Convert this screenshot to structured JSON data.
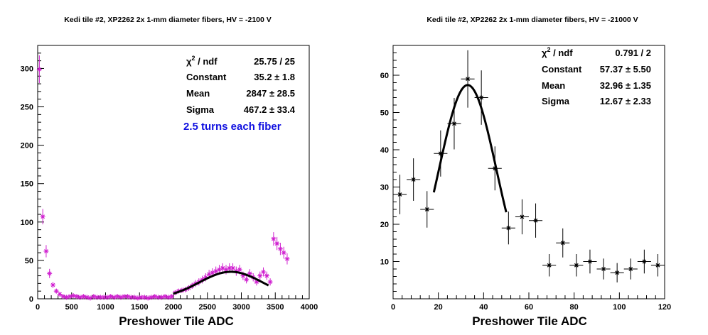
{
  "colors": {
    "magenta": "#d020d0",
    "black": "#000000",
    "annotation_blue": "#1010e0"
  },
  "chart_data": [
    {
      "type": "scatter",
      "title": "Kedi tile #2, XP2262 2x 1-mm diameter fibers, HV = -2100 V",
      "xlabel": "Preshower Tile ADC",
      "ylabel": "",
      "xlim": [
        0,
        4000
      ],
      "ylim": [
        0,
        330
      ],
      "x_ticks": [
        "0",
        "500",
        "1000",
        "1500",
        "2000",
        "2500",
        "3000",
        "3500",
        "4000"
      ],
      "y_ticks": [
        "0",
        "50",
        "100",
        "150",
        "200",
        "250",
        "300"
      ],
      "marker": "star",
      "marker_color": "magenta",
      "series": [
        {
          "x": [
            25,
            75,
            125,
            175,
            225,
            275,
            325,
            375,
            425,
            475,
            525,
            575,
            625,
            675,
            725,
            775,
            825,
            875,
            925,
            975,
            1025,
            1075,
            1125,
            1175,
            1225,
            1275,
            1325,
            1375,
            1425,
            1475,
            1525,
            1575,
            1625,
            1675,
            1725,
            1775,
            1825,
            1875,
            1925,
            1975,
            2025,
            2075,
            2125,
            2175,
            2225,
            2275,
            2325,
            2375,
            2425,
            2475,
            2525,
            2575,
            2625,
            2675,
            2725,
            2775,
            2825,
            2875,
            2925,
            2975,
            3025,
            3075,
            3125,
            3175,
            3225,
            3275,
            3325,
            3375,
            3425,
            3475,
            3525,
            3575,
            3625,
            3675
          ],
          "y": [
            299,
            107,
            62,
            33,
            18,
            10,
            6,
            3,
            2,
            3,
            4,
            3,
            2,
            3,
            2,
            1,
            3,
            2,
            2,
            2,
            2,
            3,
            2,
            3,
            2,
            3,
            3,
            2,
            2,
            1,
            2,
            2,
            1,
            2,
            3,
            2,
            2,
            3,
            2,
            3,
            8,
            10,
            11,
            12,
            14,
            17,
            20,
            22,
            25,
            28,
            32,
            34,
            36,
            38,
            40,
            38,
            40,
            40,
            36,
            38,
            30,
            25,
            33,
            28,
            22,
            30,
            35,
            30,
            22,
            78,
            72,
            65,
            60,
            52
          ],
          "yerr": [
            18,
            10,
            8,
            6,
            4,
            3,
            2.5,
            2,
            1.5,
            2,
            2,
            2,
            1.5,
            2,
            1.5,
            1,
            2,
            1.5,
            1.5,
            1.5,
            1.5,
            2,
            1.5,
            2,
            1.5,
            2,
            2,
            1.5,
            1.5,
            1,
            1.5,
            1.5,
            1,
            1.5,
            2,
            1.5,
            1.5,
            2,
            1.5,
            2,
            3,
            3,
            3.3,
            3.5,
            3.7,
            4,
            4.5,
            4.7,
            5,
            5.3,
            5.7,
            5.8,
            6,
            6.2,
            6.3,
            6.2,
            6.3,
            6.3,
            6,
            6.2,
            5.5,
            5,
            5.7,
            5.3,
            4.7,
            5.5,
            5.9,
            5.5,
            4.7,
            8.8,
            8.5,
            8,
            7.7,
            7.2
          ]
        }
      ],
      "fit": {
        "function": "gaussian",
        "constant": 35.2,
        "mean": 2847,
        "sigma": 467.2,
        "x_range": [
          2000,
          3400
        ]
      },
      "stats": [
        {
          "label": "χ² / ndf",
          "value": "25.75 / 25"
        },
        {
          "label": "Constant",
          "value": "35.2 ± 1.8"
        },
        {
          "label": "Mean",
          "value": "2847 ± 28.5"
        },
        {
          "label": "Sigma",
          "value": "467.2 ± 33.4"
        }
      ],
      "annotation": "2.5 turns each fiber"
    },
    {
      "type": "scatter",
      "title": "Kedi tile #2, XP2262 2x 1-mm diameter fibers, HV = -21000 V",
      "xlabel": "Preshower Tile ADC",
      "ylabel": "",
      "xlim": [
        0,
        120
      ],
      "ylim": [
        0,
        68
      ],
      "x_ticks": [
        "0",
        "20",
        "40",
        "60",
        "80",
        "100",
        "120"
      ],
      "y_ticks": [
        "10",
        "20",
        "30",
        "40",
        "50",
        "60"
      ],
      "marker": "star",
      "marker_color": "black",
      "series": [
        {
          "x": [
            3,
            9,
            15,
            21,
            27,
            33,
            39,
            45,
            51,
            57,
            63,
            69,
            75,
            81,
            87,
            93,
            99,
            105,
            111,
            117
          ],
          "y": [
            28,
            32,
            24,
            39,
            47,
            59,
            54,
            35,
            19,
            22,
            21,
            9,
            15,
            9,
            10,
            8,
            7,
            8,
            10,
            9
          ],
          "xerr": 3,
          "yerr": [
            5.3,
            5.7,
            4.9,
            6.2,
            6.9,
            7.7,
            7.3,
            5.9,
            4.4,
            4.7,
            4.6,
            3,
            3.9,
            3,
            3.2,
            2.8,
            2.6,
            2.8,
            3.2,
            3
          ]
        }
      ],
      "fit": {
        "function": "gaussian",
        "constant": 57.37,
        "mean": 32.96,
        "sigma": 12.67,
        "x_range": [
          18,
          50
        ]
      },
      "stats": [
        {
          "label": "χ² / ndf",
          "value": "0.791 / 2"
        },
        {
          "label": "Constant",
          "value": "57.37 ± 5.50"
        },
        {
          "label": "Mean",
          "value": "32.96 ± 1.35"
        },
        {
          "label": "Sigma",
          "value": "12.67 ± 2.33"
        }
      ]
    }
  ]
}
